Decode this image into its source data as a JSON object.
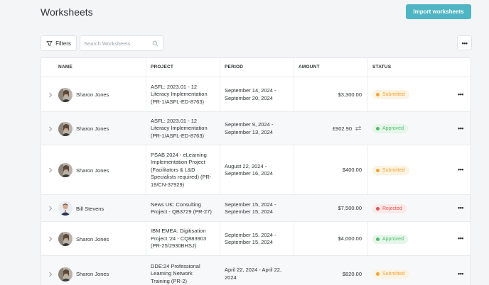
{
  "header": {
    "title": "Worksheets",
    "import_label": "Import worksheets"
  },
  "toolbar": {
    "filters_label": "Filters",
    "search_placeholder": "Search Worksheets",
    "more_label": "•••"
  },
  "table": {
    "columns": [
      "NAME",
      "PROJECT",
      "PERIOD",
      "AMOUNT",
      "STATUS"
    ],
    "rows": [
      {
        "name": "Sharon Jones",
        "avatar": "avatar-sharon",
        "project": [
          "ASFL: 2023.01 - 12",
          "Literacy Implementation",
          "(PR-1/ASFL-ED-8763)"
        ],
        "period": [
          "September 14, 2024 -",
          "September 20, 2024"
        ],
        "amount": "$3,300.00",
        "converted": false,
        "status": "Submitted",
        "status_key": "submitted"
      },
      {
        "name": "Sharon Jones",
        "avatar": "avatar-sharon",
        "project": [
          "ASFL: 2023.01 - 12",
          "Literacy Implementation",
          "(PR-1/ASFL-ED-8763)"
        ],
        "period": [
          "September 9, 2024 -",
          "September 13, 2024"
        ],
        "amount": "£902.90",
        "converted": true,
        "status": "Approved",
        "status_key": "approved"
      },
      {
        "name": "Sharon Jones",
        "avatar": "avatar-sharon",
        "project": [
          "PSAB 2024 - eLearning",
          "Implementation Project",
          "(Facilitators & L&D",
          "Specialists required) (PR-",
          "19/CN-37929)"
        ],
        "period": [
          "August 22, 2024 -",
          "September 16, 2024"
        ],
        "amount": "$400.00",
        "converted": false,
        "status": "Submitted",
        "status_key": "submitted"
      },
      {
        "name": "Bill Stevens",
        "avatar": "avatar-bill",
        "project": [
          "News UK: Consulting",
          "Project - QB3729 (PR-27)"
        ],
        "period": [
          "September 15, 2024 -",
          "September 15, 2024"
        ],
        "amount": "$7,500.00",
        "converted": false,
        "status": "Rejected",
        "status_key": "rejected"
      },
      {
        "name": "Sharon Jones",
        "avatar": "avatar-sharon",
        "project": [
          "IBM EMEA: Digitisation",
          "Project '24 - CQ883903",
          "(PR-25/2930BHSJ)"
        ],
        "period": [
          "September 15, 2024 -",
          "September 15, 2024"
        ],
        "amount": "$4,000.00",
        "converted": false,
        "status": "Approved",
        "status_key": "approved"
      },
      {
        "name": "Sharon Jones",
        "avatar": "avatar-sharon",
        "project": [
          "DDE:24 Professional",
          "Learning Network",
          "Training (PR-2)"
        ],
        "period": [
          "April 22, 2024 - April 22,",
          "2024"
        ],
        "amount": "$820.00",
        "converted": false,
        "status": "Submitted",
        "status_key": "submitted"
      }
    ]
  },
  "colors": {
    "accent": "#4fb5c4",
    "submitted": "#f2a53a",
    "approved": "#4dbb6a",
    "rejected": "#e45252"
  }
}
